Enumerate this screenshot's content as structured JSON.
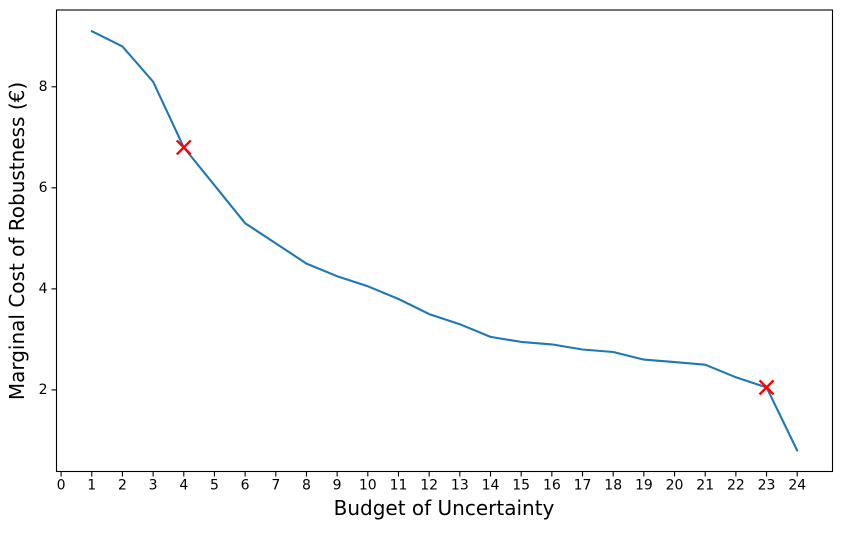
{
  "figure": {
    "background": "#ffffff"
  },
  "chart_data": {
    "type": "line",
    "title": "",
    "xlabel": "Budget of Uncertainty",
    "ylabel": "Marginal Cost of Robustness (€)",
    "x": [
      1,
      2,
      3,
      4,
      5,
      6,
      7,
      8,
      9,
      10,
      11,
      12,
      13,
      14,
      15,
      16,
      17,
      18,
      19,
      20,
      21,
      22,
      23,
      24
    ],
    "y": [
      9.1,
      8.8,
      8.1,
      6.8,
      6.05,
      5.3,
      4.9,
      4.5,
      4.25,
      4.05,
      3.8,
      3.5,
      3.3,
      3.05,
      2.95,
      2.9,
      2.8,
      2.75,
      2.6,
      2.55,
      2.5,
      2.25,
      2.05,
      0.8
    ],
    "highlighted_points": [
      {
        "x": 4,
        "y": 6.8
      },
      {
        "x": 23,
        "y": 2.05
      }
    ],
    "xticks": [
      0,
      1,
      2,
      3,
      4,
      5,
      6,
      7,
      8,
      9,
      10,
      11,
      12,
      13,
      14,
      15,
      16,
      17,
      18,
      19,
      20,
      21,
      22,
      23,
      24
    ],
    "yticks": [
      2,
      4,
      6,
      8
    ],
    "xlim": [
      -0.15,
      25.15
    ],
    "ylim": [
      0.385,
      9.52
    ],
    "grid": false,
    "legend": false,
    "line_color": "#1f77b4",
    "marker_color": "#ff0000",
    "marker_style": "x",
    "axis_color": "#000000"
  }
}
